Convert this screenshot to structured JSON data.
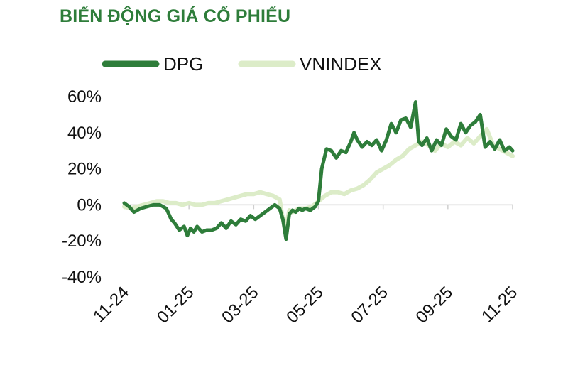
{
  "title": "BIẾN ĐỘNG GIÁ CỔ PHIẾU",
  "colors": {
    "title": "#2e7d3a",
    "dpg": "#2e7d3a",
    "vnindex": "#dcecc8",
    "axis": "#cfcfcf"
  },
  "chart_data": {
    "type": "line",
    "title": "BIẾN ĐỘNG GIÁ CỔ PHIẾU",
    "xlabel": "",
    "ylabel": "",
    "ylim": [
      -40,
      60
    ],
    "yticks": [
      "60%",
      "40%",
      "20%",
      "0%",
      "-20%",
      "-40%"
    ],
    "ytick_values": [
      60,
      40,
      20,
      0,
      -20,
      -40
    ],
    "xticks": [
      "11-24",
      "01-25",
      "03-25",
      "05-25",
      "07-25",
      "09-25",
      "11-25"
    ],
    "xtick_positions": [
      0,
      2,
      4,
      6,
      8,
      10,
      12
    ],
    "legend": "top",
    "grid": false,
    "series": [
      {
        "name": "DPG",
        "color": "#2e7d3a",
        "x": [
          0,
          0.15,
          0.3,
          0.5,
          0.7,
          0.9,
          1.1,
          1.3,
          1.45,
          1.55,
          1.7,
          1.85,
          1.95,
          2.05,
          2.15,
          2.25,
          2.4,
          2.55,
          2.7,
          2.85,
          3.0,
          3.15,
          3.3,
          3.45,
          3.6,
          3.75,
          3.9,
          4.05,
          4.2,
          4.35,
          4.5,
          4.65,
          4.8,
          4.9,
          5.0,
          5.1,
          5.2,
          5.3,
          5.4,
          5.5,
          5.6,
          5.75,
          5.9,
          6.0,
          6.1,
          6.25,
          6.4,
          6.55,
          6.7,
          6.85,
          7.0,
          7.1,
          7.2,
          7.35,
          7.5,
          7.65,
          7.8,
          7.95,
          8.1,
          8.25,
          8.4,
          8.55,
          8.7,
          8.85,
          9.0,
          9.1,
          9.2,
          9.35,
          9.5,
          9.65,
          9.8,
          9.95,
          10.1,
          10.25,
          10.4,
          10.55,
          10.7,
          10.85,
          11.0,
          11.15,
          11.3,
          11.45,
          11.6,
          11.75,
          11.9,
          12.0
        ],
        "values": [
          1,
          -1,
          -4,
          -2,
          -1,
          0,
          0,
          -2,
          -8,
          -10,
          -14,
          -12,
          -17,
          -13,
          -15,
          -12,
          -15,
          -14,
          -14,
          -13,
          -10,
          -13,
          -9,
          -11,
          -8,
          -9,
          -6,
          -8,
          -6,
          -4,
          -2,
          0,
          -2,
          -8,
          -19,
          -5,
          -3,
          -4,
          -2,
          -3,
          -2,
          -3,
          -1,
          2,
          20,
          31,
          30,
          26,
          30,
          29,
          35,
          40,
          36,
          32,
          35,
          33,
          36,
          30,
          36,
          45,
          40,
          47,
          48,
          43,
          57,
          35,
          33,
          37,
          30,
          36,
          33,
          42,
          38,
          36,
          45,
          40,
          44,
          46,
          50,
          32,
          35,
          31,
          36,
          30,
          32,
          30
        ]
      },
      {
        "name": "VNINDEX",
        "color": "#dcecc8",
        "x": [
          0,
          0.2,
          0.4,
          0.6,
          0.8,
          1.0,
          1.2,
          1.4,
          1.6,
          1.8,
          2.0,
          2.2,
          2.4,
          2.6,
          2.8,
          3.0,
          3.2,
          3.4,
          3.6,
          3.8,
          4.0,
          4.2,
          4.4,
          4.6,
          4.8,
          4.9,
          5.0,
          5.1,
          5.2,
          5.4,
          5.6,
          5.8,
          6.0,
          6.2,
          6.4,
          6.6,
          6.8,
          7.0,
          7.2,
          7.4,
          7.6,
          7.8,
          8.0,
          8.2,
          8.4,
          8.6,
          8.8,
          9.0,
          9.2,
          9.4,
          9.6,
          9.8,
          10.0,
          10.2,
          10.4,
          10.6,
          10.8,
          11.0,
          11.2,
          11.4,
          11.6,
          11.8,
          12.0
        ],
        "values": [
          -1,
          -2,
          -1,
          0,
          1,
          2,
          2,
          1,
          1,
          0,
          1,
          0,
          0,
          1,
          1,
          2,
          3,
          4,
          5,
          6,
          6,
          7,
          6,
          5,
          3,
          -8,
          -12,
          -3,
          -4,
          -2,
          -2,
          -1,
          2,
          5,
          7,
          7,
          6,
          8,
          9,
          11,
          14,
          18,
          20,
          22,
          25,
          27,
          31,
          33,
          35,
          33,
          30,
          34,
          32,
          35,
          33,
          37,
          34,
          38,
          42,
          33,
          31,
          29,
          27
        ]
      }
    ]
  }
}
